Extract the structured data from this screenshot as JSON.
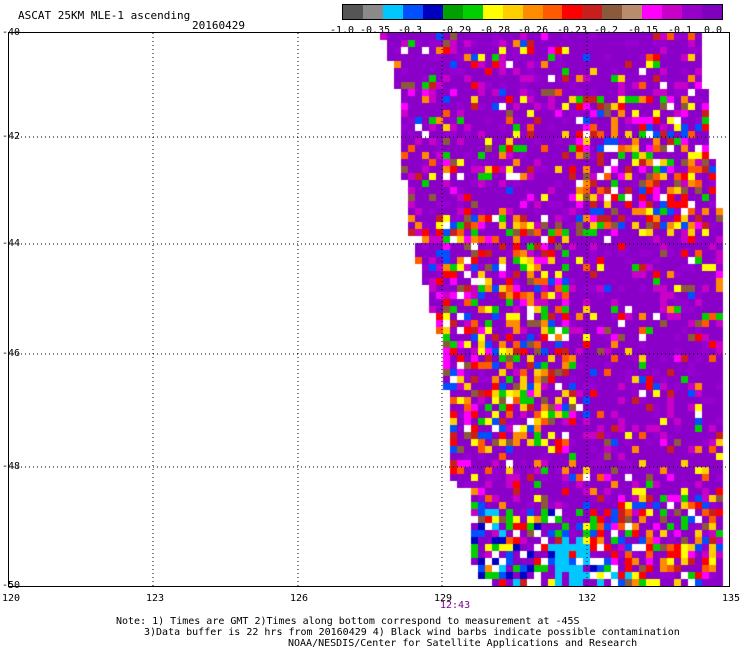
{
  "header": {
    "title": "ASCAT 25KM MLE-1 ascending",
    "date": "20160429"
  },
  "colorbar": {
    "colors": [
      "#555555",
      "#8a8a8a",
      "#00c8ff",
      "#0050ff",
      "#0000c0",
      "#00a000",
      "#00d000",
      "#ffff00",
      "#ffd000",
      "#ff8c00",
      "#ff5a00",
      "#ff0000",
      "#c81e1e",
      "#8b5a3c",
      "#b98c6e",
      "#ff00ff",
      "#c800c8",
      "#9600c8",
      "#8000c0"
    ],
    "labels": [
      "-1.0",
      "-0.35",
      "-0.3",
      "-0.29",
      "-0.28",
      "-0.26",
      "-0.23",
      "-0.2",
      "-0.15",
      "-0.1",
      "0.0"
    ]
  },
  "map": {
    "lat_labels": [
      "-40",
      "-42",
      "-44",
      "-46",
      "-48",
      "-50"
    ],
    "lon_labels": [
      "120",
      "123",
      "126",
      "129",
      "132",
      "135"
    ],
    "lon_range": [
      120,
      135
    ],
    "lat_range": [
      -40,
      -50
    ],
    "time_label": "12:43"
  },
  "notes": {
    "line1": "Note: 1) Times are GMT 2)Times along bottom correspond to measurement at -45S",
    "line2": "3)Data buffer is 22 hrs from 20160429 4) Black wind barbs indicate possible contamination",
    "line3": "NOAA/NESDIS/Center for Satellite Applications and Research"
  }
}
